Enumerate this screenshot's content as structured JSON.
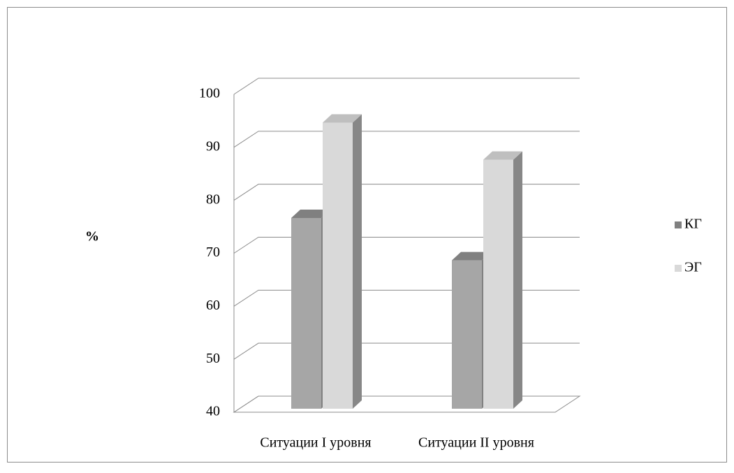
{
  "chart_data": {
    "type": "bar3d",
    "y_label": "%",
    "categories": [
      "Ситуации I уровня",
      "Ситуации II уровня"
    ],
    "series": [
      {
        "name": "КГ",
        "color": "#a6a6a6",
        "values": [
          76,
          68
        ]
      },
      {
        "name": "ЭГ",
        "color": "#d9d9d9",
        "values": [
          94,
          87
        ]
      }
    ],
    "ylim": [
      40,
      100
    ],
    "yticks": [
      40,
      50,
      60,
      70,
      80,
      90,
      100
    ],
    "grid": true,
    "legend": "right"
  }
}
